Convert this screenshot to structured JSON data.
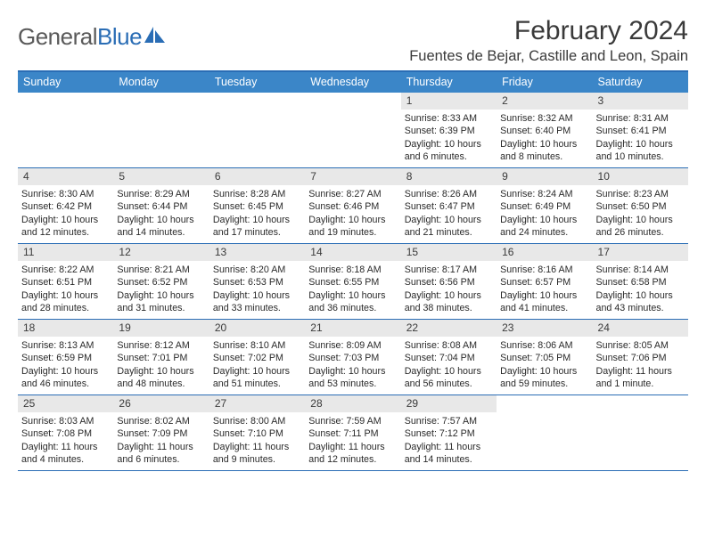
{
  "logo": {
    "word1": "General",
    "word2": "Blue"
  },
  "title": "February 2024",
  "location": "Fuentes de Bejar, Castille and Leon, Spain",
  "colors": {
    "header_bg": "#3b86c8",
    "border": "#2a6db5",
    "daynum_bg": "#e8e8e8",
    "text": "#2a2a2a",
    "logo_gray": "#5a5a5a",
    "logo_blue": "#2a6db5"
  },
  "day_names": [
    "Sunday",
    "Monday",
    "Tuesday",
    "Wednesday",
    "Thursday",
    "Friday",
    "Saturday"
  ],
  "weeks": [
    [
      {
        "empty": true
      },
      {
        "empty": true
      },
      {
        "empty": true
      },
      {
        "empty": true
      },
      {
        "n": "1",
        "sr": "Sunrise: 8:33 AM",
        "ss": "Sunset: 6:39 PM",
        "dl": "Daylight: 10 hours and 6 minutes."
      },
      {
        "n": "2",
        "sr": "Sunrise: 8:32 AM",
        "ss": "Sunset: 6:40 PM",
        "dl": "Daylight: 10 hours and 8 minutes."
      },
      {
        "n": "3",
        "sr": "Sunrise: 8:31 AM",
        "ss": "Sunset: 6:41 PM",
        "dl": "Daylight: 10 hours and 10 minutes."
      }
    ],
    [
      {
        "n": "4",
        "sr": "Sunrise: 8:30 AM",
        "ss": "Sunset: 6:42 PM",
        "dl": "Daylight: 10 hours and 12 minutes."
      },
      {
        "n": "5",
        "sr": "Sunrise: 8:29 AM",
        "ss": "Sunset: 6:44 PM",
        "dl": "Daylight: 10 hours and 14 minutes."
      },
      {
        "n": "6",
        "sr": "Sunrise: 8:28 AM",
        "ss": "Sunset: 6:45 PM",
        "dl": "Daylight: 10 hours and 17 minutes."
      },
      {
        "n": "7",
        "sr": "Sunrise: 8:27 AM",
        "ss": "Sunset: 6:46 PM",
        "dl": "Daylight: 10 hours and 19 minutes."
      },
      {
        "n": "8",
        "sr": "Sunrise: 8:26 AM",
        "ss": "Sunset: 6:47 PM",
        "dl": "Daylight: 10 hours and 21 minutes."
      },
      {
        "n": "9",
        "sr": "Sunrise: 8:24 AM",
        "ss": "Sunset: 6:49 PM",
        "dl": "Daylight: 10 hours and 24 minutes."
      },
      {
        "n": "10",
        "sr": "Sunrise: 8:23 AM",
        "ss": "Sunset: 6:50 PM",
        "dl": "Daylight: 10 hours and 26 minutes."
      }
    ],
    [
      {
        "n": "11",
        "sr": "Sunrise: 8:22 AM",
        "ss": "Sunset: 6:51 PM",
        "dl": "Daylight: 10 hours and 28 minutes."
      },
      {
        "n": "12",
        "sr": "Sunrise: 8:21 AM",
        "ss": "Sunset: 6:52 PM",
        "dl": "Daylight: 10 hours and 31 minutes."
      },
      {
        "n": "13",
        "sr": "Sunrise: 8:20 AM",
        "ss": "Sunset: 6:53 PM",
        "dl": "Daylight: 10 hours and 33 minutes."
      },
      {
        "n": "14",
        "sr": "Sunrise: 8:18 AM",
        "ss": "Sunset: 6:55 PM",
        "dl": "Daylight: 10 hours and 36 minutes."
      },
      {
        "n": "15",
        "sr": "Sunrise: 8:17 AM",
        "ss": "Sunset: 6:56 PM",
        "dl": "Daylight: 10 hours and 38 minutes."
      },
      {
        "n": "16",
        "sr": "Sunrise: 8:16 AM",
        "ss": "Sunset: 6:57 PM",
        "dl": "Daylight: 10 hours and 41 minutes."
      },
      {
        "n": "17",
        "sr": "Sunrise: 8:14 AM",
        "ss": "Sunset: 6:58 PM",
        "dl": "Daylight: 10 hours and 43 minutes."
      }
    ],
    [
      {
        "n": "18",
        "sr": "Sunrise: 8:13 AM",
        "ss": "Sunset: 6:59 PM",
        "dl": "Daylight: 10 hours and 46 minutes."
      },
      {
        "n": "19",
        "sr": "Sunrise: 8:12 AM",
        "ss": "Sunset: 7:01 PM",
        "dl": "Daylight: 10 hours and 48 minutes."
      },
      {
        "n": "20",
        "sr": "Sunrise: 8:10 AM",
        "ss": "Sunset: 7:02 PM",
        "dl": "Daylight: 10 hours and 51 minutes."
      },
      {
        "n": "21",
        "sr": "Sunrise: 8:09 AM",
        "ss": "Sunset: 7:03 PM",
        "dl": "Daylight: 10 hours and 53 minutes."
      },
      {
        "n": "22",
        "sr": "Sunrise: 8:08 AM",
        "ss": "Sunset: 7:04 PM",
        "dl": "Daylight: 10 hours and 56 minutes."
      },
      {
        "n": "23",
        "sr": "Sunrise: 8:06 AM",
        "ss": "Sunset: 7:05 PM",
        "dl": "Daylight: 10 hours and 59 minutes."
      },
      {
        "n": "24",
        "sr": "Sunrise: 8:05 AM",
        "ss": "Sunset: 7:06 PM",
        "dl": "Daylight: 11 hours and 1 minute."
      }
    ],
    [
      {
        "n": "25",
        "sr": "Sunrise: 8:03 AM",
        "ss": "Sunset: 7:08 PM",
        "dl": "Daylight: 11 hours and 4 minutes."
      },
      {
        "n": "26",
        "sr": "Sunrise: 8:02 AM",
        "ss": "Sunset: 7:09 PM",
        "dl": "Daylight: 11 hours and 6 minutes."
      },
      {
        "n": "27",
        "sr": "Sunrise: 8:00 AM",
        "ss": "Sunset: 7:10 PM",
        "dl": "Daylight: 11 hours and 9 minutes."
      },
      {
        "n": "28",
        "sr": "Sunrise: 7:59 AM",
        "ss": "Sunset: 7:11 PM",
        "dl": "Daylight: 11 hours and 12 minutes."
      },
      {
        "n": "29",
        "sr": "Sunrise: 7:57 AM",
        "ss": "Sunset: 7:12 PM",
        "dl": "Daylight: 11 hours and 14 minutes."
      },
      {
        "empty": true
      },
      {
        "empty": true
      }
    ]
  ]
}
